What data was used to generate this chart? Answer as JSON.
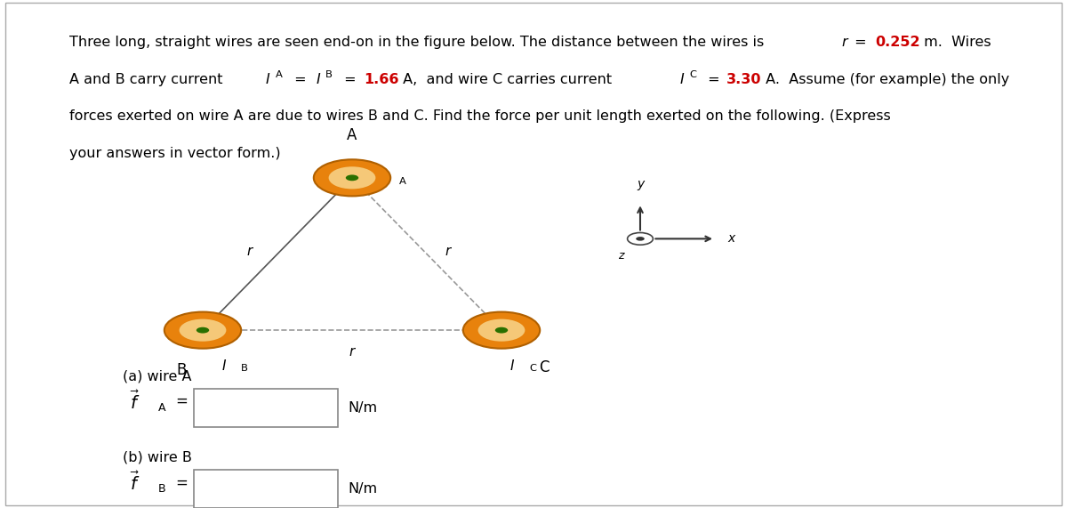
{
  "r_color": "#cc0000",
  "bg_color": "#ffffff",
  "text_color": "#000000",
  "wire_outer_color": "#e8820c",
  "wire_inner_color": "#f5c878",
  "wire_dot_color": "#2a7000",
  "dashed_color": "#999999",
  "solid_line_color": "#555555",
  "r_value": "0.252",
  "IA_val": "1.66",
  "IC_val": "3.30"
}
